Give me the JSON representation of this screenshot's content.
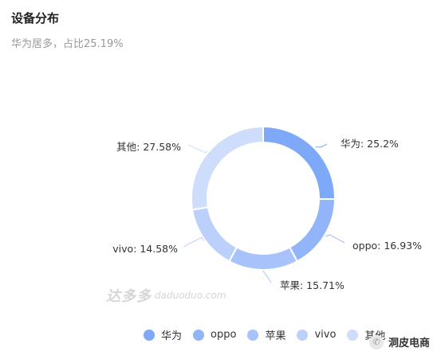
{
  "header": {
    "title": "设备分布",
    "subtitle": "华为居多，占比25.19%"
  },
  "watermark": {
    "main": "达多多",
    "sub": "daduoduo.com"
  },
  "brand": {
    "label": "洞皮电商",
    "icon": "wechat-icon"
  },
  "chart_data": {
    "type": "pie",
    "style": "donut",
    "categories": [
      "华为",
      "oppo",
      "苹果",
      "vivo",
      "其他"
    ],
    "values": [
      25.2,
      16.93,
      15.71,
      14.58,
      27.58
    ],
    "labels": [
      "华为: 25.2%",
      "oppo: 16.93%",
      "苹果: 15.71%",
      "vivo: 14.58%",
      "其他: 27.58%"
    ],
    "colors": [
      "#7ea8f8",
      "#92b5f9",
      "#a8c2fb",
      "#bcd0fc",
      "#cfddfd"
    ],
    "legend": "bottom"
  }
}
